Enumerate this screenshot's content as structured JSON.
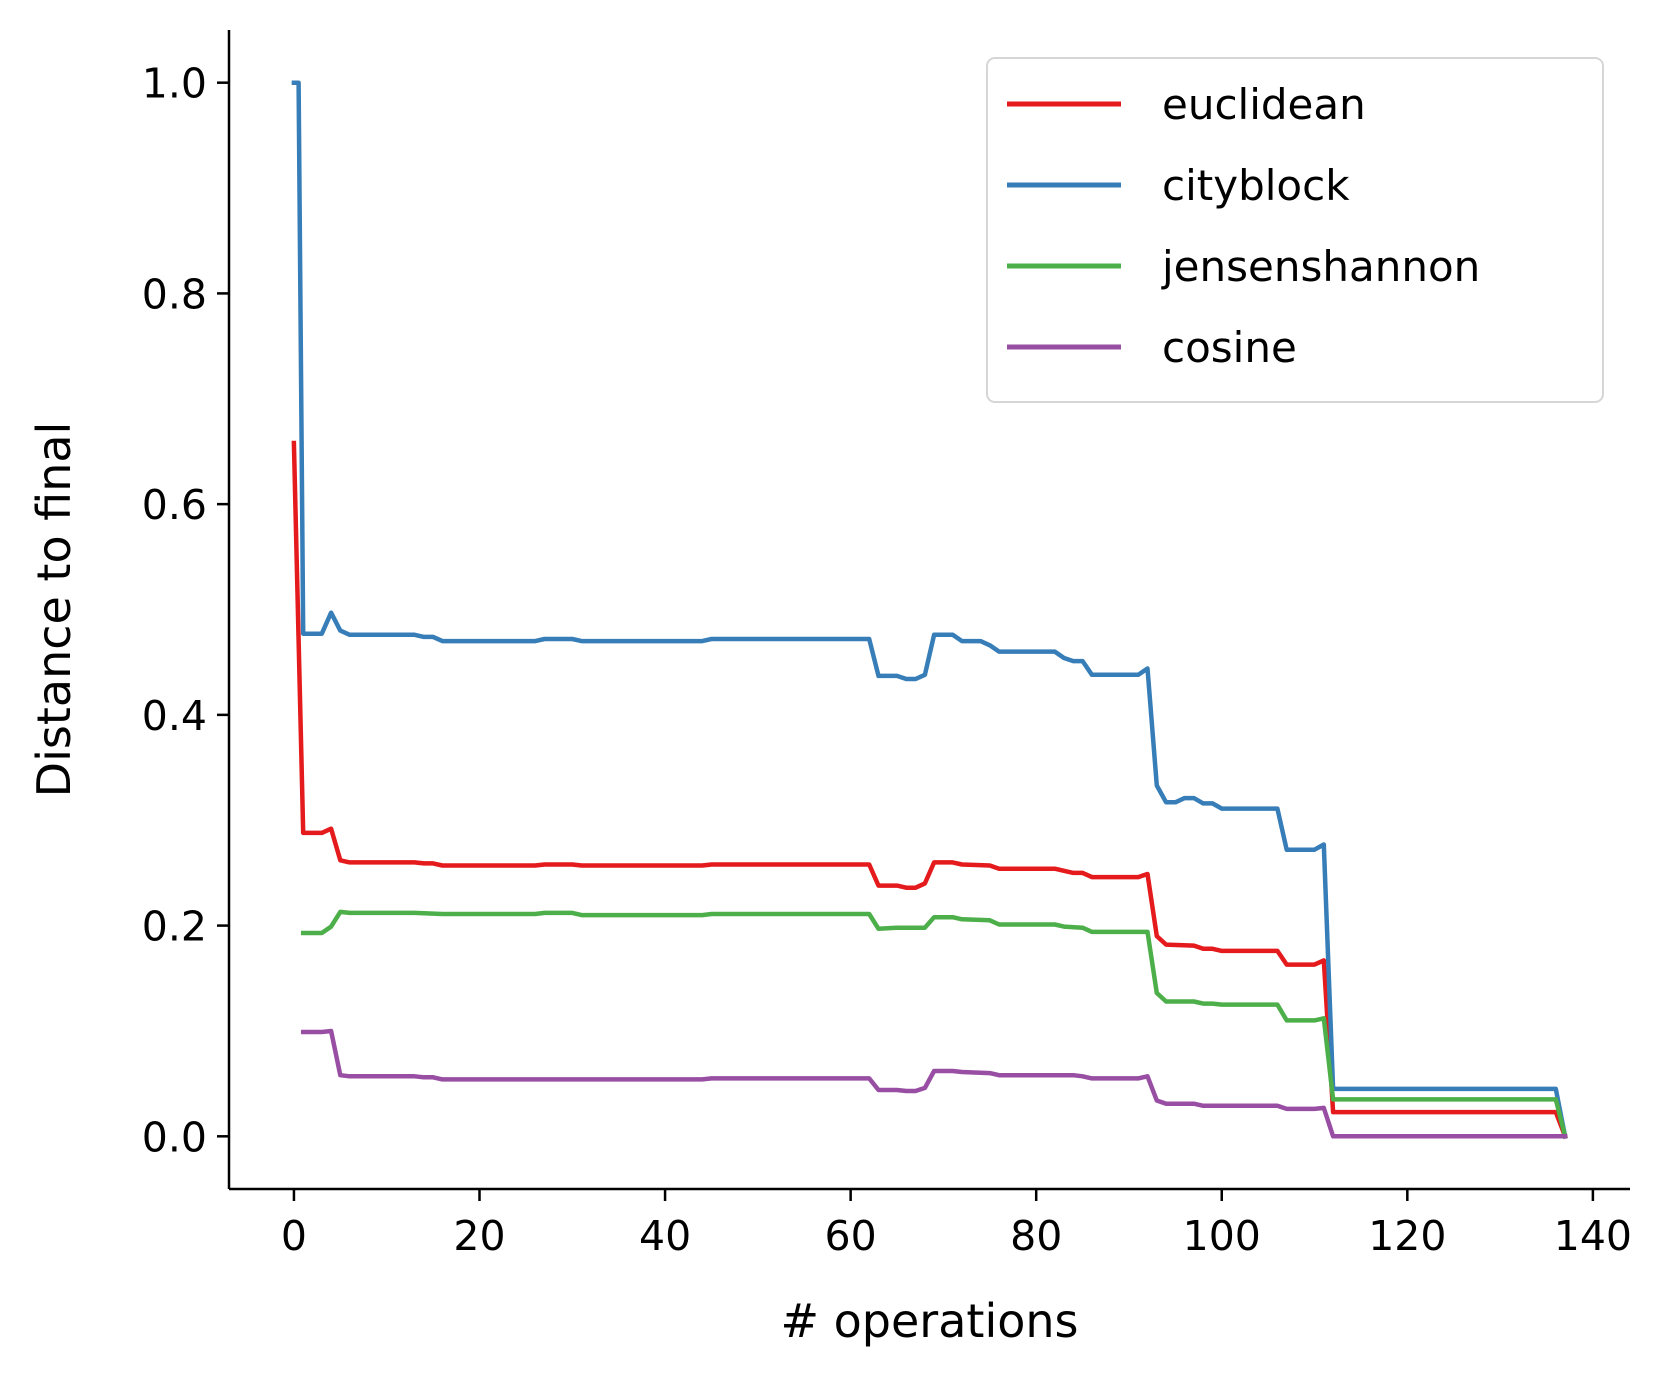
{
  "chart_data": {
    "type": "line",
    "title": "",
    "xlabel": "# operations",
    "ylabel": "Distance to final",
    "xlim": [
      -7,
      144
    ],
    "ylim": [
      -0.05,
      1.05
    ],
    "xticks": [
      0,
      20,
      40,
      60,
      80,
      100,
      120,
      140
    ],
    "yticks": [
      0.0,
      0.2,
      0.4,
      0.6,
      0.8,
      1.0
    ],
    "xtick_labels": [
      "0",
      "20",
      "40",
      "60",
      "80",
      "100",
      "120",
      "140"
    ],
    "ytick_labels": [
      "0.0",
      "0.2",
      "0.4",
      "0.6",
      "0.8",
      "1.0"
    ],
    "grid": false,
    "legend_position": "top-right",
    "series": [
      {
        "name": "euclidean",
        "color": "#e41a1c",
        "points": [
          [
            0,
            0.658
          ],
          [
            1,
            0.288
          ],
          [
            3,
            0.288
          ],
          [
            4,
            0.292
          ],
          [
            5,
            0.262
          ],
          [
            6,
            0.26
          ],
          [
            13,
            0.26
          ],
          [
            14,
            0.259
          ],
          [
            15,
            0.259
          ],
          [
            16,
            0.257
          ],
          [
            26,
            0.257
          ],
          [
            27,
            0.258
          ],
          [
            30,
            0.258
          ],
          [
            31,
            0.257
          ],
          [
            44,
            0.257
          ],
          [
            45,
            0.258
          ],
          [
            62,
            0.258
          ],
          [
            63,
            0.238
          ],
          [
            65,
            0.238
          ],
          [
            66,
            0.236
          ],
          [
            67,
            0.236
          ],
          [
            68,
            0.24
          ],
          [
            69,
            0.26
          ],
          [
            71,
            0.26
          ],
          [
            72,
            0.258
          ],
          [
            75,
            0.257
          ],
          [
            76,
            0.254
          ],
          [
            82,
            0.254
          ],
          [
            83,
            0.252
          ],
          [
            84,
            0.25
          ],
          [
            85,
            0.25
          ],
          [
            86,
            0.246
          ],
          [
            91,
            0.246
          ],
          [
            92,
            0.249
          ],
          [
            93,
            0.19
          ],
          [
            94,
            0.182
          ],
          [
            97,
            0.181
          ],
          [
            98,
            0.178
          ],
          [
            99,
            0.178
          ],
          [
            100,
            0.176
          ],
          [
            106,
            0.176
          ],
          [
            107,
            0.163
          ],
          [
            110,
            0.163
          ],
          [
            111,
            0.167
          ],
          [
            112,
            0.023
          ],
          [
            136,
            0.023
          ],
          [
            137,
            0.0
          ]
        ]
      },
      {
        "name": "cityblock",
        "color": "#377eb8",
        "points": [
          [
            0,
            1.0
          ],
          [
            0.5,
            1.0
          ],
          [
            1,
            0.477
          ],
          [
            3,
            0.477
          ],
          [
            4,
            0.497
          ],
          [
            5,
            0.48
          ],
          [
            6,
            0.476
          ],
          [
            13,
            0.476
          ],
          [
            14,
            0.474
          ],
          [
            15,
            0.474
          ],
          [
            16,
            0.47
          ],
          [
            26,
            0.47
          ],
          [
            27,
            0.472
          ],
          [
            30,
            0.472
          ],
          [
            31,
            0.47
          ],
          [
            44,
            0.47
          ],
          [
            45,
            0.472
          ],
          [
            62,
            0.472
          ],
          [
            63,
            0.437
          ],
          [
            65,
            0.437
          ],
          [
            66,
            0.434
          ],
          [
            67,
            0.434
          ],
          [
            68,
            0.438
          ],
          [
            69,
            0.476
          ],
          [
            71,
            0.476
          ],
          [
            72,
            0.47
          ],
          [
            74,
            0.47
          ],
          [
            75,
            0.466
          ],
          [
            76,
            0.46
          ],
          [
            82,
            0.46
          ],
          [
            83,
            0.454
          ],
          [
            84,
            0.451
          ],
          [
            85,
            0.451
          ],
          [
            86,
            0.438
          ],
          [
            91,
            0.438
          ],
          [
            92,
            0.444
          ],
          [
            93,
            0.333
          ],
          [
            94,
            0.317
          ],
          [
            95,
            0.317
          ],
          [
            96,
            0.321
          ],
          [
            97,
            0.321
          ],
          [
            98,
            0.316
          ],
          [
            99,
            0.316
          ],
          [
            100,
            0.311
          ],
          [
            106,
            0.311
          ],
          [
            107,
            0.272
          ],
          [
            110,
            0.272
          ],
          [
            111,
            0.277
          ],
          [
            112,
            0.045
          ],
          [
            136,
            0.045
          ],
          [
            137,
            0.0
          ]
        ]
      },
      {
        "name": "jensenshannon",
        "color": "#4daf4a",
        "points": [
          [
            1,
            0.193
          ],
          [
            3,
            0.193
          ],
          [
            4,
            0.199
          ],
          [
            5,
            0.213
          ],
          [
            6,
            0.212
          ],
          [
            13,
            0.212
          ],
          [
            16,
            0.211
          ],
          [
            26,
            0.211
          ],
          [
            27,
            0.212
          ],
          [
            30,
            0.212
          ],
          [
            31,
            0.21
          ],
          [
            44,
            0.21
          ],
          [
            45,
            0.211
          ],
          [
            62,
            0.211
          ],
          [
            63,
            0.197
          ],
          [
            65,
            0.198
          ],
          [
            68,
            0.198
          ],
          [
            69,
            0.208
          ],
          [
            71,
            0.208
          ],
          [
            72,
            0.206
          ],
          [
            75,
            0.205
          ],
          [
            76,
            0.201
          ],
          [
            82,
            0.201
          ],
          [
            83,
            0.199
          ],
          [
            85,
            0.198
          ],
          [
            86,
            0.194
          ],
          [
            92,
            0.194
          ],
          [
            93,
            0.136
          ],
          [
            94,
            0.128
          ],
          [
            97,
            0.128
          ],
          [
            98,
            0.126
          ],
          [
            99,
            0.126
          ],
          [
            100,
            0.125
          ],
          [
            106,
            0.125
          ],
          [
            107,
            0.11
          ],
          [
            110,
            0.11
          ],
          [
            111,
            0.112
          ],
          [
            112,
            0.035
          ],
          [
            136,
            0.035
          ],
          [
            137,
            0.0
          ]
        ]
      },
      {
        "name": "cosine",
        "color": "#984ea3",
        "points": [
          [
            1,
            0.099
          ],
          [
            3,
            0.099
          ],
          [
            4,
            0.1
          ],
          [
            5,
            0.058
          ],
          [
            6,
            0.057
          ],
          [
            13,
            0.057
          ],
          [
            14,
            0.056
          ],
          [
            15,
            0.056
          ],
          [
            16,
            0.054
          ],
          [
            44,
            0.054
          ],
          [
            45,
            0.055
          ],
          [
            62,
            0.055
          ],
          [
            63,
            0.044
          ],
          [
            65,
            0.044
          ],
          [
            66,
            0.043
          ],
          [
            67,
            0.043
          ],
          [
            68,
            0.046
          ],
          [
            69,
            0.062
          ],
          [
            71,
            0.062
          ],
          [
            72,
            0.061
          ],
          [
            75,
            0.06
          ],
          [
            76,
            0.058
          ],
          [
            84,
            0.058
          ],
          [
            85,
            0.057
          ],
          [
            86,
            0.055
          ],
          [
            91,
            0.055
          ],
          [
            92,
            0.057
          ],
          [
            93,
            0.034
          ],
          [
            94,
            0.031
          ],
          [
            97,
            0.031
          ],
          [
            98,
            0.029
          ],
          [
            106,
            0.029
          ],
          [
            107,
            0.026
          ],
          [
            110,
            0.026
          ],
          [
            111,
            0.027
          ],
          [
            112,
            0.0
          ],
          [
            137,
            0.0
          ]
        ]
      }
    ]
  }
}
